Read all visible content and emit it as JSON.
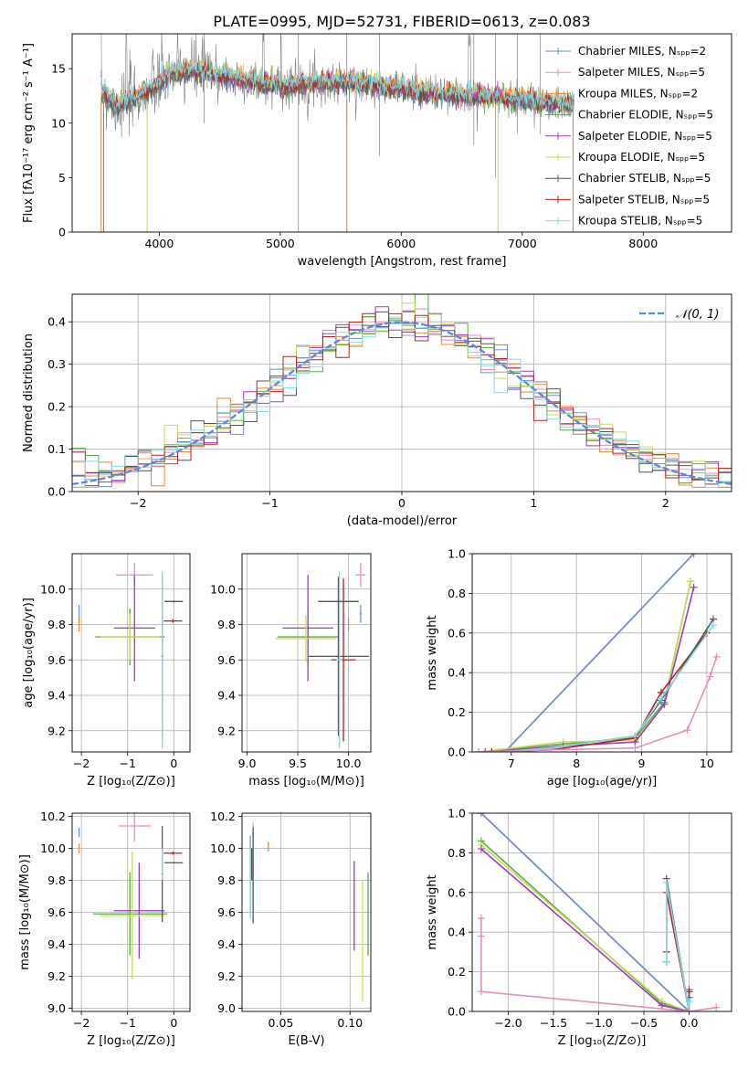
{
  "figure": {
    "title": "PLATE=0995, MJD=52731, FIBERID=0613, z=0.083"
  },
  "chart_data": [
    {
      "id": "spectrum",
      "type": "line",
      "xlabel": "wavelength [Angstrom, rest frame]",
      "ylabel": "Flux [fλ10⁻¹⁷ erg cm⁻² s⁻¹ A⁻¹]",
      "xlim": [
        3280,
        8730
      ],
      "ylim": [
        0,
        18.2
      ],
      "xticks": [
        4000,
        5000,
        6000,
        7000,
        8000
      ],
      "yticks": [
        0,
        5,
        10,
        15
      ],
      "grid": false,
      "legend_position": "top-right",
      "series": [
        {
          "name": "Chabrier MILES, Nₛₚₚ=2",
          "color": "#6c8fd4"
        },
        {
          "name": "Salpeter MILES, Nₛₚₚ=5",
          "color": "#e58fbf"
        },
        {
          "name": "Kroupa MILES, Nₛₚₚ=2",
          "color": "#e8883a"
        },
        {
          "name": "Chabrier ELODIE, Nₛₚₚ=5",
          "color": "#5faa4a"
        },
        {
          "name": "Salpeter ELODIE, Nₛₚₚ=5",
          "color": "#9a3fbd"
        },
        {
          "name": "Kroupa ELODIE, Nₛₚₚ=5",
          "color": "#c8dc5a"
        },
        {
          "name": "Chabrier STELIB, Nₛₚₚ=5",
          "color": "#555555"
        },
        {
          "name": "Salpeter STELIB, Nₛₚₚ=5",
          "color": "#b22222"
        },
        {
          "name": "Kroupa STELIB, Nₛₚₚ=5",
          "color": "#7fdbe4"
        }
      ],
      "continuum": [
        [
          3520,
          13.2
        ],
        [
          3650,
          11.5
        ],
        [
          3800,
          12.4
        ],
        [
          3950,
          13.3
        ],
        [
          4100,
          14.6
        ],
        [
          4300,
          14.8
        ],
        [
          4500,
          14.3
        ],
        [
          4700,
          14.0
        ],
        [
          4900,
          13.6
        ],
        [
          5100,
          13.5
        ],
        [
          5300,
          13.8
        ],
        [
          5500,
          13.8
        ],
        [
          5700,
          13.6
        ],
        [
          5900,
          13.3
        ],
        [
          6100,
          13.0
        ],
        [
          6300,
          12.7
        ],
        [
          6500,
          12.6
        ],
        [
          6700,
          12.4
        ],
        [
          6900,
          12.3
        ],
        [
          7100,
          12.1
        ],
        [
          7300,
          11.9
        ],
        [
          7420,
          11.6
        ]
      ],
      "data_range": [
        3520,
        7430
      ]
    },
    {
      "id": "residuals",
      "type": "line",
      "xlabel": "(data-model)/error",
      "ylabel": "Normed distribution",
      "xlim": [
        -2.5,
        2.5
      ],
      "ylim": [
        0,
        0.465
      ],
      "xticks": [
        -2,
        -1,
        0,
        1,
        2
      ],
      "yticks": [
        0.0,
        0.1,
        0.2,
        0.3,
        0.4
      ],
      "grid": true,
      "legend_position": "top-right",
      "gaussian": {
        "name": "𝒩(0, 1)",
        "mean": 0,
        "sigma": 1,
        "color": "#5b8ad8"
      },
      "histogram_bins": {
        "start": -2.5,
        "width": 0.1,
        "count": 50
      }
    },
    {
      "id": "age-z",
      "type": "scatter",
      "xlabel": "Z [log₁₀(Z/Z⊙)]",
      "ylabel": "age  [log₁₀(age/yr)]",
      "xlim": [
        -2.2,
        0.35
      ],
      "ylim": [
        9.08,
        10.2
      ],
      "xticks": [
        -2,
        -1,
        0
      ],
      "yticks": [
        9.2,
        9.4,
        9.6,
        9.8,
        10.0
      ],
      "grid": true,
      "points": [
        {
          "color": "#6c8fd4",
          "x": -2.05,
          "xerr": 0.01,
          "y": 9.86,
          "yerr": 0.05
        },
        {
          "color": "#e58fbf",
          "x": -0.85,
          "xerr": 0.4,
          "y": 10.08,
          "yerr": 0.07
        },
        {
          "color": "#e8883a",
          "x": -2.05,
          "xerr": 0.01,
          "y": 9.8,
          "yerr": 0.04
        },
        {
          "color": "#5faa4a",
          "x": -0.95,
          "xerr": 0.75,
          "y": 9.73,
          "yerr": 0.16
        },
        {
          "color": "#9a3fbd",
          "x": -0.85,
          "xerr": 0.45,
          "y": 9.78,
          "yerr": 0.3
        },
        {
          "color": "#c8dc5a",
          "x": -0.95,
          "xerr": 0.65,
          "y": 9.73,
          "yerr": 0.13
        },
        {
          "color": "#555555",
          "x": -0.25,
          "xerr": 0.02,
          "y": 9.62,
          "yerr": 0.45
        },
        {
          "color": "#b22222",
          "x": -0.02,
          "xerr": 0.2,
          "y": 9.82,
          "yerr": 0.01
        },
        {
          "color": "#7fdbe4",
          "x": -0.25,
          "xerr": 0.02,
          "y": 9.6,
          "yerr": 0.5
        },
        {
          "color": "#555555",
          "x": 0.0,
          "xerr": 0.2,
          "y": 9.93,
          "yerr": 0.005
        }
      ]
    },
    {
      "id": "age-mass",
      "type": "scatter",
      "xlabel": "mass [log₁₀(M/M⊙)]",
      "ylabel": "",
      "xlim": [
        8.95,
        10.22
      ],
      "ylim": [
        9.08,
        10.2
      ],
      "xticks": [
        9.0,
        9.5,
        10.0
      ],
      "yticks": [
        9.2,
        9.4,
        9.6,
        9.8,
        10.0
      ],
      "grid": true,
      "points": [
        {
          "color": "#6c8fd4",
          "x": 10.12,
          "xerr": 0.01,
          "y": 9.86,
          "yerr": 0.05
        },
        {
          "color": "#e58fbf",
          "x": 10.12,
          "xerr": 0.05,
          "y": 10.08,
          "yerr": 0.07
        },
        {
          "color": "#e8883a",
          "x": 10.0,
          "xerr": 0.01,
          "y": 9.8,
          "yerr": 0.04
        },
        {
          "color": "#5faa4a",
          "x": 9.6,
          "xerr": 0.3,
          "y": 9.73,
          "yerr": 0.16
        },
        {
          "color": "#9a3fbd",
          "x": 9.6,
          "xerr": 0.25,
          "y": 9.78,
          "yerr": 0.3
        },
        {
          "color": "#c8dc5a",
          "x": 9.58,
          "xerr": 0.3,
          "y": 9.72,
          "yerr": 0.13
        },
        {
          "color": "#555555",
          "x": 9.9,
          "xerr": 0.3,
          "y": 9.62,
          "yerr": 0.45
        },
        {
          "color": "#b22222",
          "x": 9.95,
          "xerr": 0.12,
          "y": 9.6,
          "yerr": 0.46
        },
        {
          "color": "#7fdbe4",
          "x": 9.91,
          "xerr": 0.03,
          "y": 9.6,
          "yerr": 0.5
        },
        {
          "color": "#555555",
          "x": 9.9,
          "xerr": 0.2,
          "y": 9.93,
          "yerr": 0.005
        }
      ]
    },
    {
      "id": "weight-age",
      "type": "line",
      "xlabel": "age  [log₁₀(age/yr)]",
      "ylabel": "mass weight",
      "xlim": [
        6.4,
        10.38
      ],
      "ylim": [
        0,
        1.0
      ],
      "xticks": [
        7,
        8,
        9,
        10
      ],
      "yticks": [
        0.0,
        0.2,
        0.4,
        0.6,
        0.8,
        1.0
      ],
      "grid": true,
      "series": [
        {
          "color": "#e8883a",
          "x": [
            6.9,
            9.8
          ],
          "y": [
            0.0,
            1.0
          ]
        },
        {
          "color": "#6c8fd4",
          "x": [
            6.9,
            9.8
          ],
          "y": [
            0.0,
            1.0
          ]
        },
        {
          "color": "#5faa4a",
          "x": [
            6.5,
            7.8,
            8.9,
            9.35,
            9.75
          ],
          "y": [
            0.0,
            0.04,
            0.07,
            0.25,
            0.86
          ]
        },
        {
          "color": "#c8dc5a",
          "x": [
            6.5,
            7.8,
            8.9,
            9.35,
            9.75
          ],
          "y": [
            0.0,
            0.05,
            0.06,
            0.24,
            0.86
          ]
        },
        {
          "color": "#9a3fbd",
          "x": [
            6.6,
            7.8,
            8.9,
            9.35,
            9.8
          ],
          "y": [
            0.0,
            0.03,
            0.05,
            0.24,
            0.83
          ]
        },
        {
          "color": "#b22222",
          "x": [
            6.7,
            7.6,
            8.9,
            9.3,
            10.0
          ],
          "y": [
            0.0,
            0.01,
            0.07,
            0.3,
            0.6
          ]
        },
        {
          "color": "#555555",
          "x": [
            6.8,
            7.6,
            8.9,
            9.3,
            10.1
          ],
          "y": [
            0.0,
            0.02,
            0.08,
            0.26,
            0.67
          ]
        },
        {
          "color": "#7fdbe4",
          "x": [
            6.8,
            7.6,
            8.9,
            9.3,
            10.1
          ],
          "y": [
            0.0,
            0.02,
            0.08,
            0.27,
            0.64
          ]
        },
        {
          "color": "#e58fbf",
          "x": [
            6.5,
            7.6,
            8.9,
            9.7,
            10.05,
            10.15
          ],
          "y": [
            0.0,
            0.01,
            0.02,
            0.11,
            0.38,
            0.48
          ]
        }
      ]
    },
    {
      "id": "mass-z",
      "type": "scatter",
      "xlabel": "Z [log₁₀(Z/Z⊙)]",
      "ylabel": "mass [log₁₀(M/M⊙)]",
      "xlim": [
        -2.2,
        0.35
      ],
      "ylim": [
        8.98,
        10.22
      ],
      "xticks": [
        -2,
        -1,
        0
      ],
      "yticks": [
        9.0,
        9.2,
        9.4,
        9.6,
        9.8,
        10.0,
        10.2
      ],
      "grid": true,
      "points": [
        {
          "color": "#6c8fd4",
          "x": -2.05,
          "xerr": 0.01,
          "y": 10.1,
          "yerr": 0.03
        },
        {
          "color": "#e58fbf",
          "x": -0.85,
          "xerr": 0.35,
          "y": 10.14,
          "yerr": 0.1
        },
        {
          "color": "#e8883a",
          "x": -2.05,
          "xerr": 0.01,
          "y": 10.0,
          "yerr": 0.03
        },
        {
          "color": "#5faa4a",
          "x": -0.95,
          "xerr": 0.8,
          "y": 9.59,
          "yerr": 0.26
        },
        {
          "color": "#9a3fbd",
          "x": -0.75,
          "xerr": 0.55,
          "y": 9.61,
          "yerr": 0.3
        },
        {
          "color": "#c8dc5a",
          "x": -0.9,
          "xerr": 0.7,
          "y": 9.58,
          "yerr": 0.4
        },
        {
          "color": "#555555",
          "x": -0.25,
          "xerr": 0.02,
          "y": 9.84,
          "yerr": 0.3
        },
        {
          "color": "#b22222",
          "x": -0.02,
          "xerr": 0.2,
          "y": 9.97,
          "yerr": 0.01
        },
        {
          "color": "#7fdbe4",
          "x": -0.25,
          "xerr": 0.02,
          "y": 9.9,
          "yerr": 0.1
        },
        {
          "color": "#555555",
          "x": 0.0,
          "xerr": 0.2,
          "y": 9.91,
          "yerr": 0.005
        }
      ]
    },
    {
      "id": "mass-ebv",
      "type": "scatter",
      "xlabel": "E(B-V)",
      "ylabel": "",
      "xlim": [
        0.022,
        0.115
      ],
      "ylim": [
        8.98,
        10.22
      ],
      "xticks": [
        0.05,
        0.1
      ],
      "yticks": [
        9.0,
        9.2,
        9.4,
        9.6,
        9.8,
        10.0,
        10.2
      ],
      "grid": true,
      "points": [
        {
          "color": "#6c8fd4",
          "x": 0.028,
          "y": 9.83,
          "yerr": 0.25
        },
        {
          "color": "#e58fbf",
          "x": 0.03,
          "y": 10.08,
          "yerr": 0.08
        },
        {
          "color": "#e8883a",
          "x": 0.041,
          "y": 10.01,
          "yerr": 0.03
        },
        {
          "color": "#5faa4a",
          "x": 0.113,
          "y": 9.59,
          "yerr": 0.26
        },
        {
          "color": "#9a3fbd",
          "x": 0.103,
          "y": 9.64,
          "yerr": 0.28
        },
        {
          "color": "#c8dc5a",
          "x": 0.109,
          "y": 9.42,
          "yerr": 0.38
        },
        {
          "color": "#555555",
          "x": 0.03,
          "y": 9.83,
          "yerr": 0.3
        },
        {
          "color": "#b22222",
          "x": 0.029,
          "y": 9.9,
          "yerr": 0.1
        },
        {
          "color": "#7fdbe4",
          "x": 0.028,
          "y": 9.78,
          "yerr": 0.22
        }
      ]
    },
    {
      "id": "weight-z",
      "type": "line",
      "xlabel": "Z [log₁₀(Z/Z⊙)]",
      "ylabel": "mass weight",
      "xlim": [
        -2.4,
        0.47
      ],
      "ylim": [
        0,
        1.0
      ],
      "xticks": [
        -2.0,
        -1.5,
        -1.0,
        -0.5,
        0.0
      ],
      "yticks": [
        0.0,
        0.2,
        0.4,
        0.6,
        0.8,
        1.0
      ],
      "grid": true,
      "series": [
        {
          "color": "#e8883a",
          "x": [
            -2.3,
            0.0
          ],
          "y": [
            1.0,
            0.0
          ]
        },
        {
          "color": "#6c8fd4",
          "x": [
            -2.3,
            0.0
          ],
          "y": [
            1.0,
            0.0
          ]
        },
        {
          "color": "#5faa4a",
          "x": [
            -2.3,
            -0.3,
            0.0
          ],
          "y": [
            0.86,
            0.04,
            0.0
          ]
        },
        {
          "color": "#c8dc5a",
          "x": [
            -2.3,
            -0.3,
            0.0
          ],
          "y": [
            0.84,
            0.05,
            0.0
          ]
        },
        {
          "color": "#9a3fbd",
          "x": [
            -2.3,
            -0.3,
            0.0,
            0.0
          ],
          "y": [
            0.82,
            0.03,
            0.0,
            0.11
          ]
        },
        {
          "color": "#b22222",
          "x": [
            -0.25,
            -0.25,
            0.0,
            0.0
          ],
          "y": [
            0.3,
            0.6,
            0.0,
            0.1
          ]
        },
        {
          "color": "#555555",
          "x": [
            -0.25,
            -0.25,
            0.0,
            0.0
          ],
          "y": [
            0.25,
            0.67,
            0.0,
            0.07
          ]
        },
        {
          "color": "#7fdbe4",
          "x": [
            -0.25,
            -0.25,
            0.0,
            0.0
          ],
          "y": [
            0.25,
            0.65,
            0.0,
            0.05
          ]
        },
        {
          "color": "#e58fbf",
          "x": [
            -2.3,
            -2.3,
            -2.3,
            0.0,
            0.3
          ],
          "y": [
            0.47,
            0.38,
            0.1,
            0.0,
            0.02
          ]
        }
      ]
    }
  ]
}
